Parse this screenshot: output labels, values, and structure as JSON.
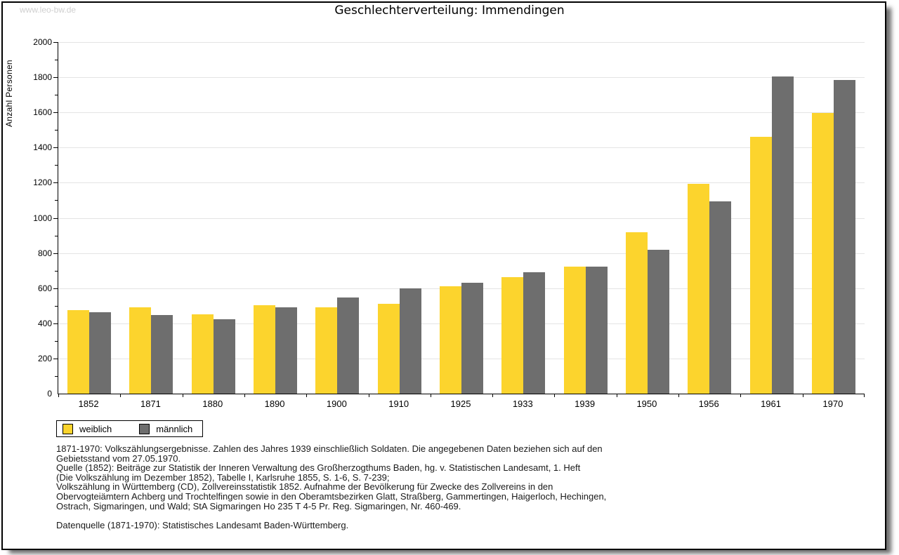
{
  "watermark": "www.leo-bw.de",
  "title": "Geschlechterverteilung: Immendingen",
  "chart_data": {
    "type": "bar",
    "title": "Geschlechterverteilung: Immendingen",
    "xlabel": "",
    "ylabel": "Anzahl Personen",
    "ylim": [
      0,
      2000
    ],
    "ytick_step": 200,
    "ytick_minor_step": 100,
    "grid": true,
    "legend_position": "bottom-left",
    "categories": [
      "1852",
      "1871",
      "1880",
      "1890",
      "1900",
      "1910",
      "1925",
      "1933",
      "1939",
      "1950",
      "1956",
      "1961",
      "1970"
    ],
    "series": [
      {
        "name": "weiblich",
        "color": "#FCD42D",
        "values": [
          475,
          490,
          452,
          505,
          492,
          512,
          611,
          664,
          723,
          920,
          1194,
          1462,
          1595
        ]
      },
      {
        "name": "männlich",
        "color": "#6E6E6E",
        "values": [
          463,
          448,
          423,
          490,
          545,
          597,
          632,
          691,
          723,
          820,
          1095,
          1805,
          1783
        ]
      }
    ]
  },
  "footnotes": {
    "lines": [
      "1871-1970: Volkszählungsergebnisse. Zahlen des Jahres 1939 einschließlich Soldaten. Die angegebenen Daten beziehen sich auf den",
      "Gebietsstand vom 27.05.1970.",
      "Quelle (1852): Beiträge zur Statistik der Inneren Verwaltung des Großherzogthums Baden, hg. v. Statistischen Landesamt, 1. Heft",
      "(Die Volkszählung im Dezember 1852), Tabelle I, Karlsruhe 1855, S. 1-6, S. 7-239;",
      "Volkszählung in Württemberg (CD), Zollvereinsstatistik 1852. Aufnahme der Bevölkerung für Zwecke des Zollvereins in den",
      "Obervogteiämtern Achberg und Trochtelfingen sowie in den Oberamtsbezirken Glatt, Straßberg, Gammertingen, Haigerloch, Hechingen,",
      "Ostrach, Sigmaringen, und Wald; StA Sigmaringen Ho 235 T 4-5 Pr. Reg. Sigmaringen, Nr. 460-469."
    ],
    "datasource": "Datenquelle (1871-1970): Statistisches Landesamt Baden-Württemberg."
  }
}
